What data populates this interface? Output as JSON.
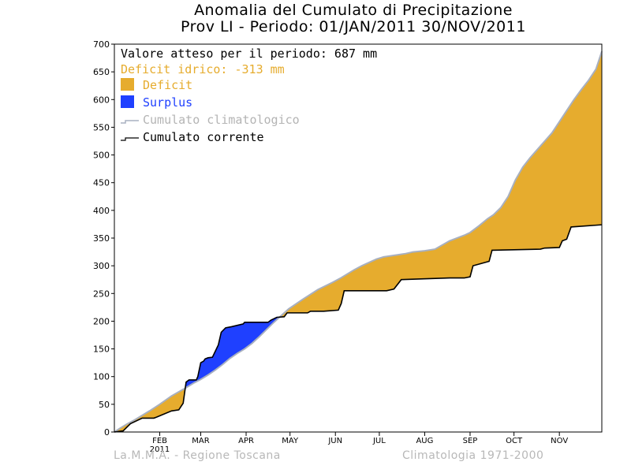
{
  "chart_data": {
    "type": "area",
    "title": "Anomalia del Cumulato di Precipitazione",
    "subtitle": "Prov LI - Periodo: 01/JAN/2011 30/NOV/2011",
    "legend": {
      "placement": "top-left",
      "expected_text": "Valore atteso per il periodo: 687 mm",
      "deficit_text": "Deficit idrico: -313 mm",
      "items": [
        {
          "label": "Deficit",
          "color": "#e6ac2e",
          "kind": "fill"
        },
        {
          "label": "Surplus",
          "color": "#1f40ff",
          "kind": "fill"
        },
        {
          "label": "Cumulato climatologico",
          "color": "#a8b0c0",
          "kind": "line"
        },
        {
          "label": "Cumulato corrente",
          "color": "#000000",
          "kind": "line"
        }
      ]
    },
    "x_unit": "day of year 2011",
    "xlim": [
      1,
      334
    ],
    "ylim": [
      0,
      700
    ],
    "y_ticks": [
      0,
      50,
      100,
      150,
      200,
      250,
      300,
      350,
      400,
      450,
      500,
      550,
      600,
      650,
      700
    ],
    "x_ticks": [
      {
        "day": 32,
        "label": "FEB"
      },
      {
        "day": 60,
        "label": "MAR"
      },
      {
        "day": 91,
        "label": "APR"
      },
      {
        "day": 121,
        "label": "MAY"
      },
      {
        "day": 152,
        "label": "JUN"
      },
      {
        "day": 182,
        "label": "JUL"
      },
      {
        "day": 213,
        "label": "AUG"
      },
      {
        "day": 244,
        "label": "SEP"
      },
      {
        "day": 274,
        "label": "OCT"
      },
      {
        "day": 305,
        "label": "NOV"
      }
    ],
    "year_label": "2011",
    "grid": false,
    "series": [
      {
        "name": "Cumulato climatologico",
        "x": [
          1,
          5,
          10,
          15,
          20,
          25,
          32,
          40,
          50,
          55,
          60,
          65,
          70,
          75,
          80,
          85,
          90,
          95,
          100,
          105,
          110,
          115,
          120,
          130,
          140,
          150,
          155,
          160,
          165,
          170,
          175,
          180,
          185,
          190,
          200,
          205,
          213,
          220,
          230,
          240,
          244,
          250,
          256,
          260,
          265,
          270,
          275,
          280,
          285,
          290,
          295,
          300,
          305,
          310,
          315,
          320,
          325,
          330,
          334
        ],
        "y": [
          0,
          7,
          15,
          22,
          30,
          38,
          50,
          65,
          80,
          88,
          95,
          103,
          112,
          122,
          133,
          142,
          150,
          160,
          172,
          185,
          198,
          210,
          222,
          240,
          257,
          270,
          277,
          285,
          293,
          300,
          306,
          312,
          316,
          318,
          322,
          325,
          327,
          330,
          345,
          355,
          360,
          372,
          385,
          392,
          405,
          425,
          455,
          478,
          495,
          510,
          525,
          540,
          560,
          580,
          600,
          618,
          635,
          655,
          687
        ]
      },
      {
        "name": "Cumulato corrente",
        "x": [
          1,
          7,
          12,
          20,
          28,
          30,
          40,
          45,
          48,
          50,
          52,
          57,
          58,
          60,
          62,
          63,
          65,
          68,
          72,
          74,
          77,
          81,
          89,
          90,
          106,
          108,
          112,
          117,
          119,
          133,
          135,
          144,
          154,
          156,
          158,
          187,
          192,
          197,
          230,
          240,
          244,
          246,
          257,
          259,
          292,
          295,
          305,
          307,
          310,
          313,
          334
        ],
        "y": [
          0,
          2,
          15,
          25,
          25,
          27,
          38,
          40,
          52,
          90,
          94,
          94,
          100,
          125,
          128,
          132,
          134,
          135,
          157,
          180,
          188,
          190,
          195,
          198,
          198,
          202,
          207,
          208,
          215,
          215,
          218,
          218,
          220,
          232,
          255,
          255,
          258,
          275,
          278,
          278,
          280,
          300,
          308,
          328,
          330,
          332,
          333,
          345,
          348,
          370,
          374
        ]
      }
    ]
  },
  "footer": {
    "left": "La.M.M.A. - Regione Toscana",
    "right": "Climatologia 1971-2000"
  }
}
